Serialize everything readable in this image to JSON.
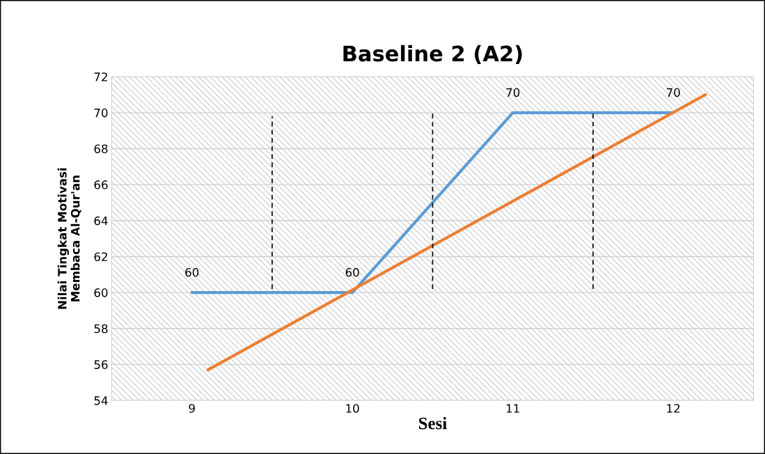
{
  "chart_data": {
    "type": "line",
    "title": "Baseline 2 (A2)",
    "xlabel": "Sesi",
    "ylabel": "Nilai Tingkat Motivasi\nMembaca Al-Qur'an",
    "xlim": [
      8.5,
      12.5
    ],
    "xticks": [
      9,
      10,
      11,
      12
    ],
    "ylim": [
      54,
      72
    ],
    "yticks": [
      54,
      56,
      58,
      60,
      62,
      64,
      66,
      68,
      70,
      72
    ],
    "grid": "y",
    "series": [
      {
        "color": "#5b9bd5",
        "x": [
          9,
          10,
          11,
          12
        ],
        "values": [
          60,
          60,
          70,
          70
        ],
        "data_labels": true
      },
      {
        "color": "#ed7d31",
        "x": [
          9.1,
          12.2
        ],
        "values": [
          55.7,
          71
        ]
      },
      {
        "color": "#000000",
        "x": [
          9.5,
          9.5
        ],
        "values": [
          60.2,
          69.8
        ],
        "line_style": "dashed"
      },
      {
        "color": "#000000",
        "x": [
          10.5,
          10.5
        ],
        "values": [
          60.2,
          70
        ],
        "line_style": "dashed"
      },
      {
        "color": "#000000",
        "x": [
          11.5,
          11.5
        ],
        "values": [
          60.2,
          70
        ],
        "line_style": "dashed"
      }
    ]
  }
}
